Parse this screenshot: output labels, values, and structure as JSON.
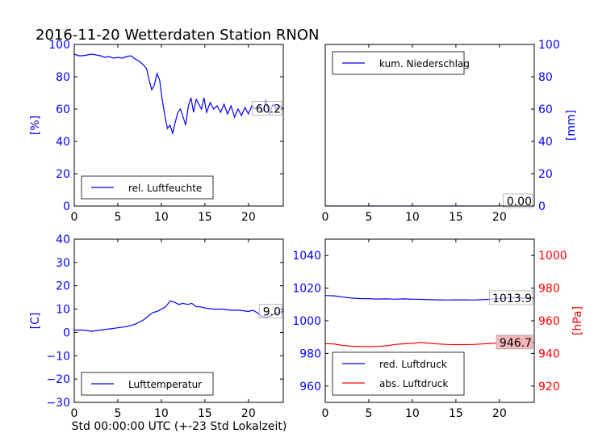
{
  "title": "2016-11-20 Wetterdaten Station RNON",
  "xlabel": "Std 00:00:00 UTC (+-23 Std Lokalzeit)",
  "colors": {
    "blue": "#0000ff",
    "red": "#ff0000",
    "label_box_red": "#f4b6b6"
  },
  "chart_data": [
    {
      "id": "humidity",
      "type": "line",
      "ylabel": "[%]",
      "xlim": [
        0,
        24
      ],
      "ylim": [
        0,
        100
      ],
      "xticks": [
        "0",
        "5",
        "10",
        "15",
        "20"
      ],
      "yticks": [
        "0",
        "20",
        "40",
        "60",
        "80",
        "100"
      ],
      "legend": "rel. Luftfeuchte",
      "legend_position": "lower-left",
      "last_value_label": "60.2",
      "series": [
        {
          "name": "rel. Luftfeuchte",
          "color": "#0000ff",
          "x": [
            0,
            0.5,
            1,
            1.5,
            2,
            2.5,
            3,
            3.5,
            4,
            4.5,
            5,
            5.5,
            6,
            6.5,
            7,
            7.5,
            8,
            8.3,
            8.6,
            8.9,
            9.2,
            9.5,
            9.8,
            10.1,
            10.4,
            10.7,
            11,
            11.3,
            11.6,
            11.9,
            12.2,
            12.5,
            12.8,
            13.1,
            13.4,
            13.7,
            14,
            14.3,
            14.6,
            14.9,
            15.2,
            15.6,
            16,
            16.4,
            16.8,
            17.2,
            17.6,
            18,
            18.4,
            18.8,
            19.2,
            19.6,
            20,
            20.4,
            20.8,
            21.2,
            21.6,
            22,
            22.4,
            22.8,
            23.2,
            23.6,
            24
          ],
          "y": [
            94,
            93,
            93,
            93.5,
            94,
            93.5,
            93,
            92,
            92.5,
            91.5,
            92,
            91.5,
            92.5,
            93,
            91,
            89.5,
            87,
            85,
            78,
            72,
            75,
            82,
            78,
            66,
            56,
            48,
            50,
            45,
            52,
            58,
            60,
            55,
            50,
            62,
            67,
            58,
            66,
            63,
            60,
            67,
            58,
            64,
            60,
            62,
            58,
            63,
            57,
            62,
            55,
            60,
            56,
            61,
            57,
            62,
            60,
            63,
            58,
            65,
            57,
            63,
            60,
            62,
            60.2
          ]
        }
      ]
    },
    {
      "id": "precipitation",
      "type": "line",
      "ylabel": "[mm]",
      "xlim": [
        0,
        24
      ],
      "ylim": [
        0,
        100
      ],
      "xticks": [
        "0",
        "5",
        "10",
        "15",
        "20"
      ],
      "yticks": [
        "0",
        "20",
        "40",
        "60",
        "80",
        "100"
      ],
      "legend": "kum. Niederschlag",
      "legend_position": "upper-left",
      "last_value_label": "0.00",
      "series": [
        {
          "name": "kum. Niederschlag",
          "color": "#0000ff",
          "x": [
            0,
            24
          ],
          "y": [
            0,
            0
          ]
        }
      ]
    },
    {
      "id": "temperature",
      "type": "line",
      "ylabel": "[C]",
      "xlim": [
        0,
        24
      ],
      "ylim": [
        -30,
        40
      ],
      "xticks": [
        "0",
        "5",
        "10",
        "15",
        "20"
      ],
      "yticks": [
        "−30",
        "−20",
        "−10",
        "0",
        "10",
        "20",
        "30",
        "40"
      ],
      "legend": "Lufttemperatur",
      "legend_position": "lower-left",
      "last_value_label": "9.0",
      "series": [
        {
          "name": "Lufttemperatur",
          "color": "#0000ff",
          "x": [
            0,
            1,
            2,
            3,
            4,
            5,
            6,
            7,
            7.5,
            8,
            8.5,
            9,
            9.5,
            10,
            10.5,
            11,
            11.5,
            12,
            12.5,
            13,
            13.5,
            14,
            14.5,
            15,
            16,
            17,
            18,
            19,
            20,
            20.5,
            21,
            21.5,
            22,
            22.5,
            23,
            23.5,
            24
          ],
          "y": [
            1,
            1,
            0.5,
            1,
            1.5,
            2,
            2.5,
            3.5,
            4.5,
            5.5,
            7,
            8.5,
            9,
            10,
            11,
            13.5,
            13,
            12,
            12.5,
            12,
            12.5,
            11,
            11,
            10.5,
            10,
            10,
            9.5,
            9.5,
            9,
            9.5,
            8.5,
            7,
            6.5,
            7,
            8,
            8.5,
            9
          ]
        }
      ]
    },
    {
      "id": "pressure",
      "type": "line",
      "ylabel_right": "[hPa]",
      "xlim": [
        0,
        24
      ],
      "ylim_left": [
        950,
        1050
      ],
      "ylim_right": [
        910,
        1010
      ],
      "xticks": [
        "0",
        "5",
        "10",
        "15",
        "20"
      ],
      "yticks_left": [
        "960",
        "980",
        "1000",
        "1020",
        "1040"
      ],
      "yticks_right": [
        "920",
        "940",
        "960",
        "980",
        "1000"
      ],
      "legend_position": "lower-left",
      "series": [
        {
          "name": "red. Luftdruck",
          "color": "#0000ff",
          "axis": "left",
          "last_value_label": "1013.9",
          "x": [
            0,
            1,
            2,
            3,
            4,
            5,
            6,
            7,
            8,
            9,
            10,
            11,
            12,
            13,
            14,
            15,
            16,
            17,
            18,
            19,
            20,
            21,
            22,
            23,
            24
          ],
          "y": [
            1015.5,
            1015.3,
            1014.5,
            1013.9,
            1013.6,
            1013.5,
            1013.3,
            1013.4,
            1013.2,
            1013.4,
            1013.2,
            1013.1,
            1012.9,
            1012.8,
            1012.7,
            1012.8,
            1012.8,
            1012.7,
            1012.9,
            1013.2,
            1013.6,
            1014.0,
            1014.1,
            1013.9,
            1013.9
          ]
        },
        {
          "name": "abs. Luftdruck",
          "color": "#ff0000",
          "axis": "right",
          "last_value_label": "946.7",
          "x": [
            0,
            1,
            2,
            3,
            4,
            5,
            6,
            7,
            8,
            9,
            10,
            11,
            12,
            13,
            14,
            15,
            16,
            17,
            18,
            19,
            20,
            21,
            22,
            23,
            24
          ],
          "y": [
            946.0,
            945.8,
            944.9,
            944.4,
            944.2,
            944.1,
            944.3,
            944.6,
            945.5,
            945.9,
            946.2,
            946.7,
            946.2,
            945.8,
            945.5,
            945.4,
            945.4,
            945.5,
            945.8,
            946.1,
            946.4,
            946.8,
            946.8,
            946.7,
            946.7
          ]
        }
      ]
    }
  ]
}
